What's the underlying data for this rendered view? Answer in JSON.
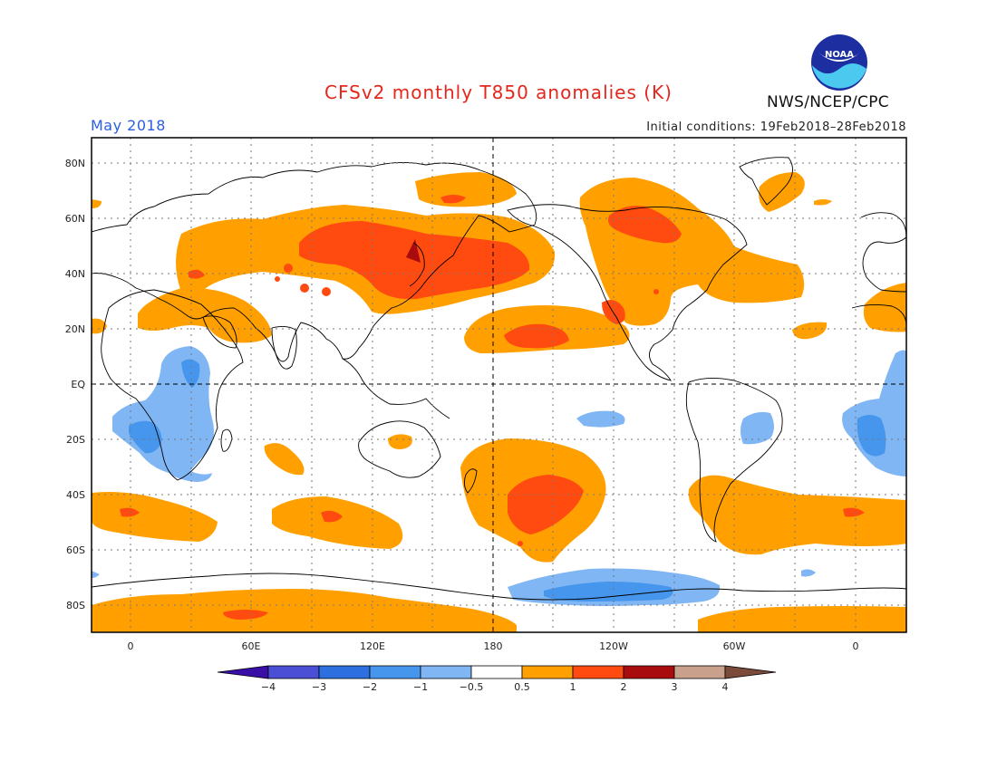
{
  "title": "CFSv2 monthly T850 anomalies (K)",
  "month": "May 2018",
  "initial_conditions": "Initial conditions: 19Feb2018–28Feb2018",
  "agency": "NWS/NCEP/CPC",
  "logo_text": "NOAA",
  "lat_labels": [
    "80N",
    "60N",
    "40N",
    "20N",
    "EQ",
    "20S",
    "40S",
    "60S",
    "80S"
  ],
  "lon_labels": [
    "0",
    "60E",
    "120E",
    "180",
    "120W",
    "60W",
    "0"
  ],
  "colorbar": {
    "labels": [
      "−4",
      "−3",
      "−2",
      "−1",
      "−0.5",
      "0.5",
      "1",
      "2",
      "3",
      "4"
    ],
    "colors": [
      "#3a0fa8",
      "#4a4fd6",
      "#2e6fe0",
      "#4596ec",
      "#7fb6f3",
      "#ffffff",
      "#ffa000",
      "#ff4a10",
      "#a80c0c",
      "#c8a08c",
      "#7a4a3a"
    ]
  },
  "fill_colors": {
    "light_blue": "#7fb6f3",
    "blue": "#4596ec",
    "orange": "#ffa000",
    "red": "#ff4a10",
    "dark_red": "#a80c0c"
  }
}
